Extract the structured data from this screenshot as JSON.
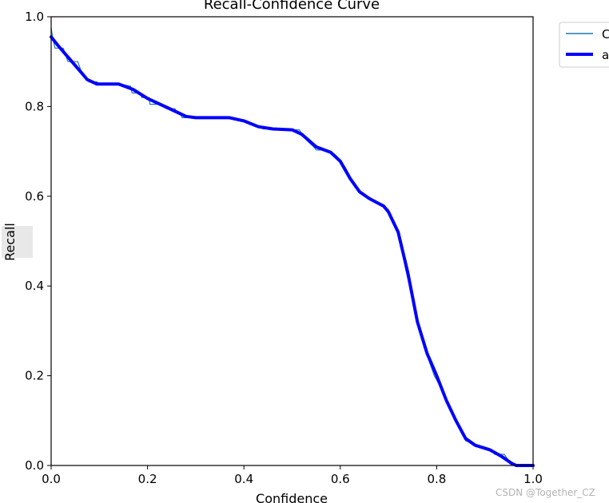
{
  "chart_data": {
    "type": "line",
    "title": "Recall-Confidence Curve",
    "xlabel": "Confidence",
    "ylabel": "Recall",
    "xlim": [
      0,
      1
    ],
    "ylim": [
      0,
      1
    ],
    "xticks": [
      "0.0",
      "0.2",
      "0.4",
      "0.6",
      "0.8",
      "1.0"
    ],
    "yticks": [
      "0.0",
      "0.2",
      "0.4",
      "0.6",
      "0.8",
      "1.0"
    ],
    "grid": false,
    "legend_position": "outside-top-right",
    "series": [
      {
        "name": "C",
        "color": "#1f77b4",
        "style": "thin",
        "points": [
          [
            0.0,
            0.975
          ],
          [
            0.003,
            0.955
          ],
          [
            0.008,
            0.93
          ],
          [
            0.025,
            0.93
          ],
          [
            0.03,
            0.915
          ],
          [
            0.035,
            0.9
          ],
          [
            0.055,
            0.9
          ],
          [
            0.062,
            0.88
          ],
          [
            0.07,
            0.87
          ],
          [
            0.078,
            0.855
          ],
          [
            0.095,
            0.855
          ],
          [
            0.1,
            0.85
          ],
          [
            0.145,
            0.85
          ],
          [
            0.165,
            0.845
          ],
          [
            0.168,
            0.83
          ],
          [
            0.185,
            0.83
          ],
          [
            0.188,
            0.82
          ],
          [
            0.203,
            0.82
          ],
          [
            0.205,
            0.805
          ],
          [
            0.225,
            0.805
          ],
          [
            0.24,
            0.795
          ],
          [
            0.257,
            0.795
          ],
          [
            0.26,
            0.785
          ],
          [
            0.268,
            0.785
          ],
          [
            0.272,
            0.775
          ],
          [
            0.38,
            0.775
          ],
          [
            0.4,
            0.77
          ],
          [
            0.42,
            0.76
          ],
          [
            0.44,
            0.75
          ],
          [
            0.49,
            0.75
          ],
          [
            0.495,
            0.748
          ],
          [
            0.515,
            0.748
          ],
          [
            0.52,
            0.74
          ],
          [
            0.53,
            0.725
          ],
          [
            0.545,
            0.71
          ],
          [
            0.55,
            0.703
          ],
          [
            0.568,
            0.703
          ],
          [
            0.58,
            0.7
          ],
          [
            0.592,
            0.69
          ],
          [
            0.61,
            0.665
          ],
          [
            0.63,
            0.625
          ],
          [
            0.65,
            0.6
          ],
          [
            0.69,
            0.58
          ],
          [
            0.7,
            0.57
          ],
          [
            0.712,
            0.54
          ],
          [
            0.722,
            0.505
          ],
          [
            0.73,
            0.47
          ],
          [
            0.735,
            0.44
          ],
          [
            0.748,
            0.38
          ],
          [
            0.758,
            0.33
          ],
          [
            0.77,
            0.28
          ],
          [
            0.782,
            0.24
          ],
          [
            0.795,
            0.2
          ],
          [
            0.808,
            0.175
          ],
          [
            0.818,
            0.15
          ],
          [
            0.83,
            0.12
          ],
          [
            0.845,
            0.09
          ],
          [
            0.86,
            0.055
          ],
          [
            0.875,
            0.05
          ],
          [
            0.89,
            0.04
          ],
          [
            0.915,
            0.035
          ],
          [
            0.92,
            0.025
          ],
          [
            0.94,
            0.025
          ],
          [
            0.95,
            0.01
          ],
          [
            0.958,
            0.002
          ],
          [
            0.97,
            0.0
          ],
          [
            1.0,
            0.0
          ]
        ]
      },
      {
        "name": "a",
        "color": "#0000ff",
        "style": "thick",
        "points": [
          [
            0.0,
            0.955
          ],
          [
            0.015,
            0.935
          ],
          [
            0.035,
            0.91
          ],
          [
            0.055,
            0.885
          ],
          [
            0.075,
            0.86
          ],
          [
            0.095,
            0.85
          ],
          [
            0.14,
            0.85
          ],
          [
            0.17,
            0.838
          ],
          [
            0.2,
            0.818
          ],
          [
            0.24,
            0.798
          ],
          [
            0.28,
            0.778
          ],
          [
            0.3,
            0.775
          ],
          [
            0.37,
            0.775
          ],
          [
            0.4,
            0.768
          ],
          [
            0.43,
            0.755
          ],
          [
            0.46,
            0.75
          ],
          [
            0.5,
            0.748
          ],
          [
            0.52,
            0.738
          ],
          [
            0.55,
            0.71
          ],
          [
            0.58,
            0.698
          ],
          [
            0.6,
            0.678
          ],
          [
            0.62,
            0.64
          ],
          [
            0.64,
            0.61
          ],
          [
            0.66,
            0.595
          ],
          [
            0.69,
            0.578
          ],
          [
            0.7,
            0.565
          ],
          [
            0.72,
            0.52
          ],
          [
            0.74,
            0.43
          ],
          [
            0.76,
            0.32
          ],
          [
            0.78,
            0.25
          ],
          [
            0.8,
            0.2
          ],
          [
            0.82,
            0.145
          ],
          [
            0.84,
            0.1
          ],
          [
            0.86,
            0.06
          ],
          [
            0.88,
            0.045
          ],
          [
            0.91,
            0.035
          ],
          [
            0.935,
            0.02
          ],
          [
            0.955,
            0.005
          ],
          [
            0.965,
            0.0
          ],
          [
            1.0,
            0.0
          ]
        ]
      }
    ]
  },
  "watermark": "CSDN @Together_CZ"
}
